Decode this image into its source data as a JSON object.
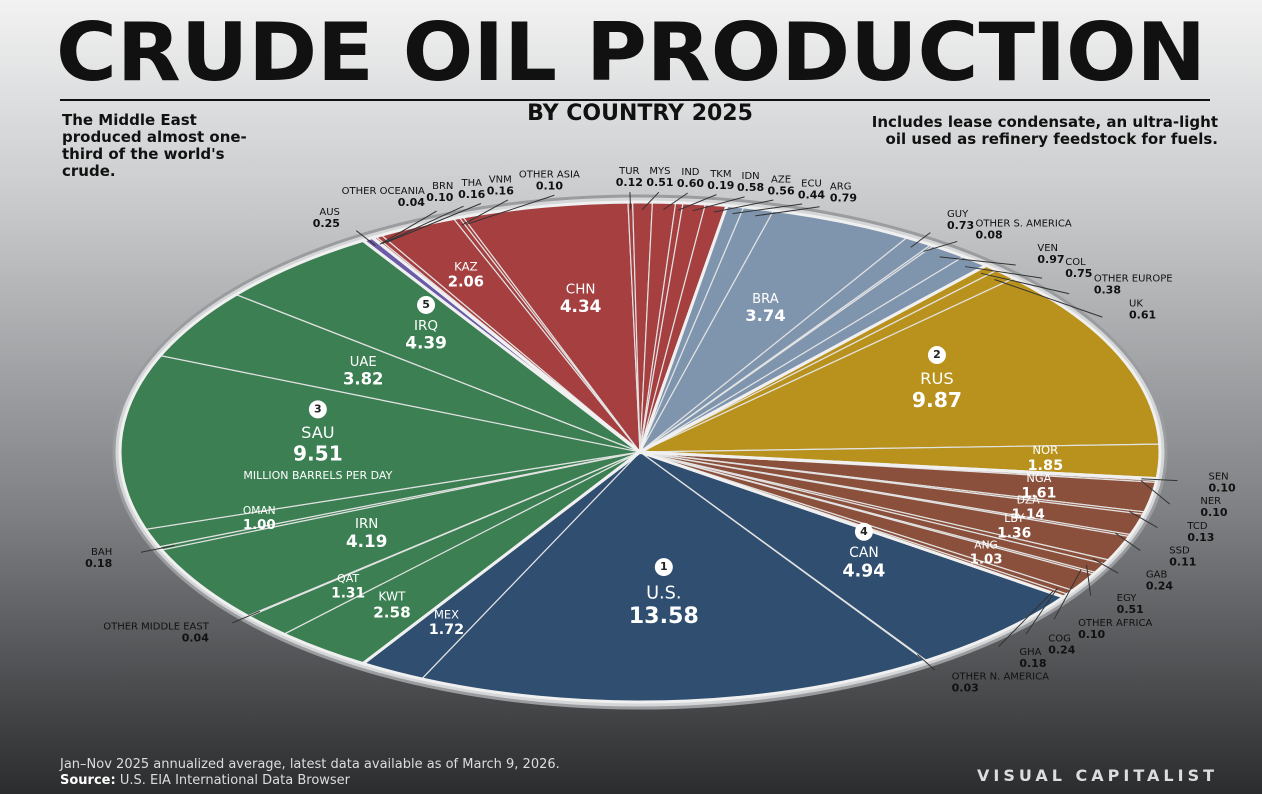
{
  "chart_data": {
    "type": "voronoi-treemap",
    "title": "CRUDE OIL PRODUCTION",
    "subtitle": "BY COUNTRY 2025",
    "unit": "MILLION BARRELS PER DAY",
    "note_left": "The Middle East produced almost one-third of the world's crude.",
    "note_right": "Includes lease condensate, an ultra-light oil used as refinery feedstock for fuels.",
    "footnote": "Jan–Nov 2025 annualized average, latest data available as of March 9, 2026.",
    "source_label": "Source:",
    "source": "U.S. EIA International Data Browser",
    "brand": "VISUAL CAPITALIST",
    "groups": [
      {
        "color": "#3b7f52",
        "countries": [
          {
            "name": "KWT",
            "value": 2.58
          },
          {
            "name": "QAT",
            "value": 1.31
          },
          {
            "name": "OTHER MIDDLE EAST",
            "value": 0.04
          },
          {
            "name": "IRN",
            "value": 4.19
          },
          {
            "name": "BAH",
            "value": 0.18
          },
          {
            "name": "OMAN",
            "value": 1.0,
            "value_label": "1.00"
          },
          {
            "name": "SAU",
            "value": 9.51,
            "rank": 3
          },
          {
            "name": "UAE",
            "value": 3.82
          },
          {
            "name": "IRQ",
            "value": 4.39,
            "rank": 5
          }
        ]
      },
      {
        "color": "#6a5aa8",
        "countries": [
          {
            "name": "AUS",
            "value": 0.25
          },
          {
            "name": "OTHER OCEANIA",
            "value": 0.04
          }
        ]
      },
      {
        "color": "#a53f40",
        "countries": [
          {
            "name": "BRN",
            "value": 0.1,
            "value_label": "0.10"
          },
          {
            "name": "THA",
            "value": 0.16
          },
          {
            "name": "KAZ",
            "value": 2.06
          },
          {
            "name": "VNM",
            "value": 0.16
          },
          {
            "name": "OTHER ASIA",
            "value": 0.1,
            "value_label": "0.10"
          },
          {
            "name": "CHN",
            "value": 4.34
          },
          {
            "name": "TUR",
            "value": 0.12
          },
          {
            "name": "MYS",
            "value": 0.51
          },
          {
            "name": "IND",
            "value": 0.6,
            "value_label": "0.60"
          },
          {
            "name": "TKM",
            "value": 0.19
          },
          {
            "name": "IDN",
            "value": 0.58
          },
          {
            "name": "AZE",
            "value": 0.56
          }
        ]
      },
      {
        "color": "#7f95ae",
        "countries": [
          {
            "name": "ECU",
            "value": 0.44
          },
          {
            "name": "ARG",
            "value": 0.79
          },
          {
            "name": "BRA",
            "value": 3.74
          },
          {
            "name": "GUY",
            "value": 0.73
          },
          {
            "name": "OTHER S. AMERICA",
            "value": 0.08
          },
          {
            "name": "VEN",
            "value": 0.97
          },
          {
            "name": "COL",
            "value": 0.75
          }
        ]
      },
      {
        "color": "#b9921d",
        "countries": [
          {
            "name": "OTHER EUROPE",
            "value": 0.38
          },
          {
            "name": "UK",
            "value": 0.61
          },
          {
            "name": "RUS",
            "value": 9.87,
            "rank": 2
          },
          {
            "name": "NOR",
            "value": 1.85
          }
        ]
      },
      {
        "color": "#8b503c",
        "countries": [
          {
            "name": "SEN",
            "value": 0.1,
            "value_label": "0.10"
          },
          {
            "name": "NER",
            "value": 0.1,
            "value_label": "0.10"
          },
          {
            "name": "NGA",
            "value": 1.61
          },
          {
            "name": "TCD",
            "value": 0.13
          },
          {
            "name": "DZA",
            "value": 1.14
          },
          {
            "name": "SSD",
            "value": 0.11
          },
          {
            "name": "LBY",
            "value": 1.36
          },
          {
            "name": "GAB",
            "value": 0.24
          },
          {
            "name": "EGY",
            "value": 0.51
          },
          {
            "name": "OTHER AFRICA",
            "value": 0.1,
            "value_label": "0.10"
          },
          {
            "name": "ANG",
            "value": 1.03
          },
          {
            "name": "COG",
            "value": 0.24
          },
          {
            "name": "GHA",
            "value": 0.18
          }
        ]
      },
      {
        "color": "#2f4e70",
        "countries": [
          {
            "name": "CAN",
            "value": 4.94,
            "rank": 4
          },
          {
            "name": "OTHER N. AMERICA",
            "value": 0.03
          },
          {
            "name": "U.S.",
            "value": 13.58,
            "rank": 1
          },
          {
            "name": "MEX",
            "value": 1.72
          }
        ]
      }
    ]
  }
}
